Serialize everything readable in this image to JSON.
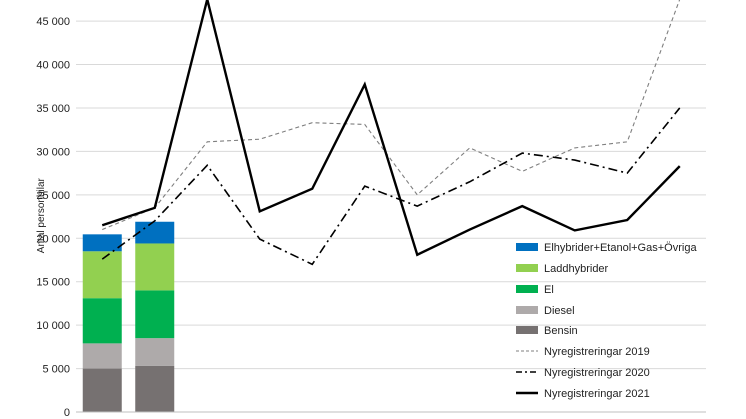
{
  "chart_data": {
    "type": "bar",
    "ylabel": "Antal personbilar",
    "ylim": [
      0,
      47500
    ],
    "yticks": [
      0,
      5000,
      10000,
      15000,
      20000,
      25000,
      30000,
      35000,
      40000,
      45000
    ],
    "ytick_labels": [
      "0",
      "5 000",
      "10 000",
      "15 000",
      "20 000",
      "25 000",
      "30 000",
      "35 000",
      "40 000",
      "45 000"
    ],
    "num_periods": 12,
    "stacked_series": [
      {
        "name": "Bensin",
        "color": "#767171",
        "values": [
          5000,
          5300
        ]
      },
      {
        "name": "Diesel",
        "color": "#aeaaaa",
        "values": [
          2900,
          3200
        ]
      },
      {
        "name": "El",
        "color": "#00b050",
        "values": [
          5200,
          5500
        ]
      },
      {
        "name": "Laddhybrider",
        "color": "#92d050",
        "values": [
          5400,
          5400
        ]
      },
      {
        "name": "Elhybrider+Etanol+Gas+Övriga",
        "color": "#0070c0",
        "values": [
          1950,
          2500
        ]
      }
    ],
    "line_series": [
      {
        "name": "Nyregistreringar 2019",
        "style": "dashed",
        "color": "#7f7f7f",
        "values": [
          21000,
          23500,
          31100,
          31400,
          33300,
          33100,
          25000,
          30400,
          27700,
          30400,
          31100,
          47500
        ]
      },
      {
        "name": "Nyregistreringar 2020",
        "style": "dashdot",
        "color": "#000000",
        "values": [
          17600,
          22000,
          28400,
          19900,
          17000,
          26000,
          23700,
          26500,
          29800,
          29000,
          27500,
          35000
        ]
      },
      {
        "name": "Nyregistreringar 2021",
        "style": "solid",
        "color": "#000000",
        "values": [
          21500,
          23500,
          47500,
          23100,
          25700,
          37700,
          18100,
          21000,
          23700,
          20900,
          22100,
          28300
        ]
      }
    ],
    "legend": {
      "placement": "right"
    },
    "grid": true
  }
}
